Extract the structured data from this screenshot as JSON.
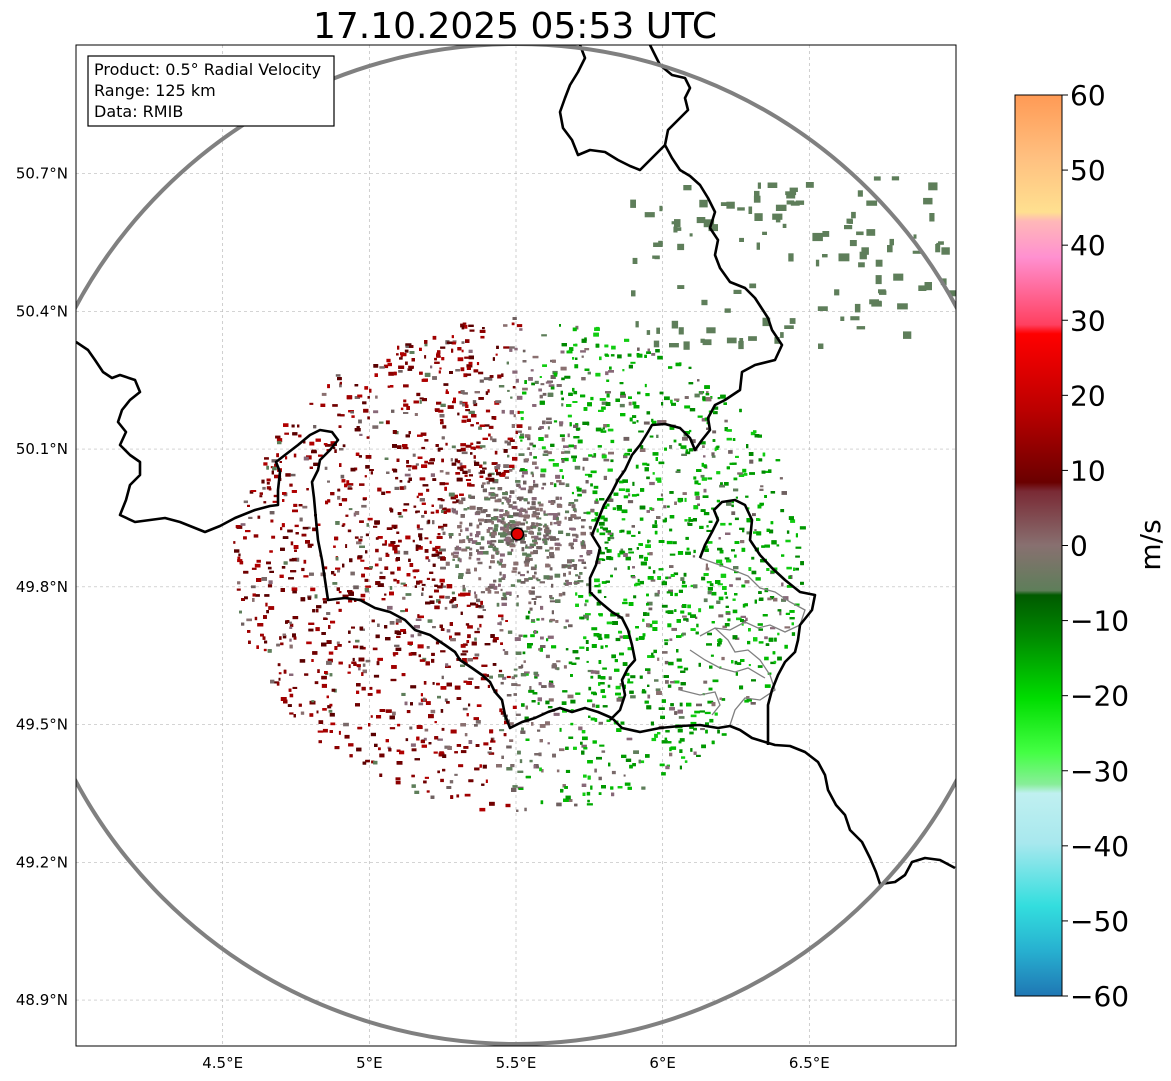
{
  "title": "17.10.2025 05:53 UTC",
  "info_box": {
    "product": "Product: 0.5° Radial Velocity",
    "range": "Range: 125 km",
    "data": "Data: RMIB"
  },
  "map": {
    "lon_range": [
      4.0,
      7.0
    ],
    "lat_range": [
      48.8,
      50.98
    ],
    "lon_ticks": [
      {
        "value": 4.5,
        "label": "4.5°E"
      },
      {
        "value": 5.0,
        "label": "5°E"
      },
      {
        "value": 5.5,
        "label": "5.5°E"
      },
      {
        "value": 6.0,
        "label": "6°E"
      },
      {
        "value": 6.5,
        "label": "6.5°E"
      }
    ],
    "lat_ticks": [
      {
        "value": 50.7,
        "label": "50.7°N"
      },
      {
        "value": 50.4,
        "label": "50.4°N"
      },
      {
        "value": 50.1,
        "label": "50.1°N"
      },
      {
        "value": 49.8,
        "label": "49.8°N"
      },
      {
        "value": 49.5,
        "label": "49.5°N"
      },
      {
        "value": 49.2,
        "label": "49.2°N"
      },
      {
        "value": 48.9,
        "label": "48.9°N"
      }
    ],
    "radar_site": {
      "lon": 5.505,
      "lat": 49.915
    },
    "gridlines": true
  },
  "colorbar": {
    "label": "m/s",
    "range": [
      -60,
      60
    ],
    "ticks": [
      60,
      50,
      40,
      30,
      20,
      10,
      0,
      -10,
      -20,
      -30,
      -40,
      -50,
      -60
    ],
    "tick_labels": [
      "60",
      "50",
      "40",
      "30",
      "20",
      "10",
      "0",
      "−10",
      "−20",
      "−30",
      "−40",
      "−50",
      "−60"
    ]
  },
  "colors": {
    "range_ring": "#808080",
    "border": "#000000",
    "inner_border": "#808080",
    "site_marker": "#e00000",
    "inbound_green": "#009900",
    "outbound_red": "#8b0000",
    "near_zero": "#8a7070",
    "near_zero_green": "#5e7e5a"
  }
}
